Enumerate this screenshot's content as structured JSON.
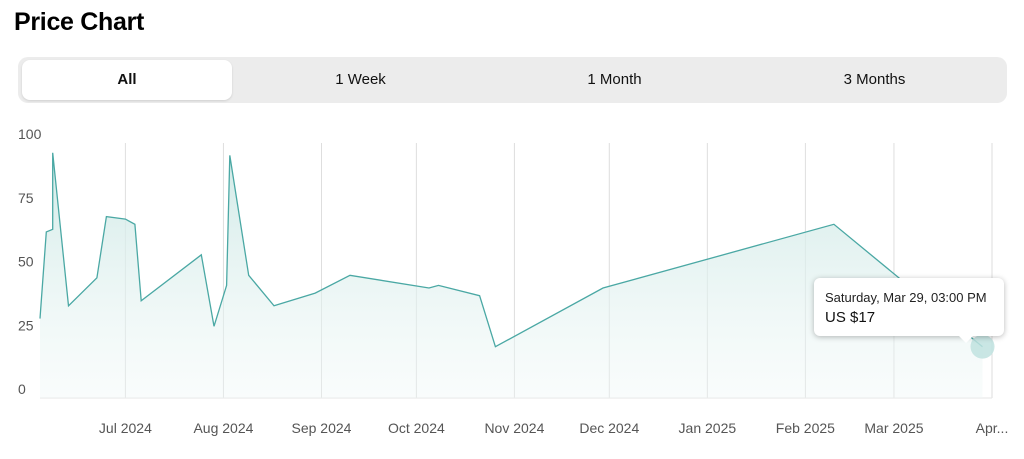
{
  "page": {
    "title": "Price Chart"
  },
  "tabs": [
    {
      "label": "All",
      "active": true
    },
    {
      "label": "1 Week",
      "active": false
    },
    {
      "label": "1 Month",
      "active": false
    },
    {
      "label": "3 Months",
      "active": false
    }
  ],
  "tooltip": {
    "date": "Saturday, Mar 29, 03:00 PM",
    "price": "US $17"
  },
  "chart_data": {
    "type": "area",
    "title": "",
    "xlabel": "",
    "ylabel": "",
    "ylim": [
      0,
      100
    ],
    "y_ticks": [
      0,
      25,
      50,
      75,
      100
    ],
    "x_tick_labels": [
      "Jul 2024",
      "Aug 2024",
      "Sep 2024",
      "Oct 2024",
      "Nov 2024",
      "Dec 2024",
      "Jan 2025",
      "Feb 2025",
      "Mar 2025",
      "Apr..."
    ],
    "x_tick_dates": [
      "2024-07-01",
      "2024-08-01",
      "2024-09-01",
      "2024-10-01",
      "2024-11-01",
      "2024-12-01",
      "2025-01-01",
      "2025-02-01",
      "2025-03-01",
      "2025-04-01"
    ],
    "x_range": [
      "2024-06-04",
      "2025-04-01"
    ],
    "grid": "vertical",
    "line_color": "#4aa8a4",
    "fill_color": "#d6eeec",
    "highlight": {
      "x": "2025-03-29",
      "y": 17
    },
    "series": [
      {
        "points": [
          {
            "x": "2024-06-04",
            "y": 28
          },
          {
            "x": "2024-06-06",
            "y": 62
          },
          {
            "x": "2024-06-08",
            "y": 63
          },
          {
            "x": "2024-06-08",
            "y": 93
          },
          {
            "x": "2024-06-13",
            "y": 33
          },
          {
            "x": "2024-06-22",
            "y": 44
          },
          {
            "x": "2024-06-25",
            "y": 68
          },
          {
            "x": "2024-07-01",
            "y": 67
          },
          {
            "x": "2024-07-04",
            "y": 65
          },
          {
            "x": "2024-07-06",
            "y": 35
          },
          {
            "x": "2024-07-25",
            "y": 53
          },
          {
            "x": "2024-07-29",
            "y": 25
          },
          {
            "x": "2024-08-02",
            "y": 41
          },
          {
            "x": "2024-08-03",
            "y": 92
          },
          {
            "x": "2024-08-09",
            "y": 45
          },
          {
            "x": "2024-08-17",
            "y": 33
          },
          {
            "x": "2024-08-30",
            "y": 38
          },
          {
            "x": "2024-09-10",
            "y": 45
          },
          {
            "x": "2024-10-05",
            "y": 40
          },
          {
            "x": "2024-10-08",
            "y": 41
          },
          {
            "x": "2024-10-21",
            "y": 37
          },
          {
            "x": "2024-10-26",
            "y": 17
          },
          {
            "x": "2024-11-29",
            "y": 40
          },
          {
            "x": "2025-02-10",
            "y": 65
          },
          {
            "x": "2025-03-29",
            "y": 17
          }
        ]
      }
    ]
  }
}
